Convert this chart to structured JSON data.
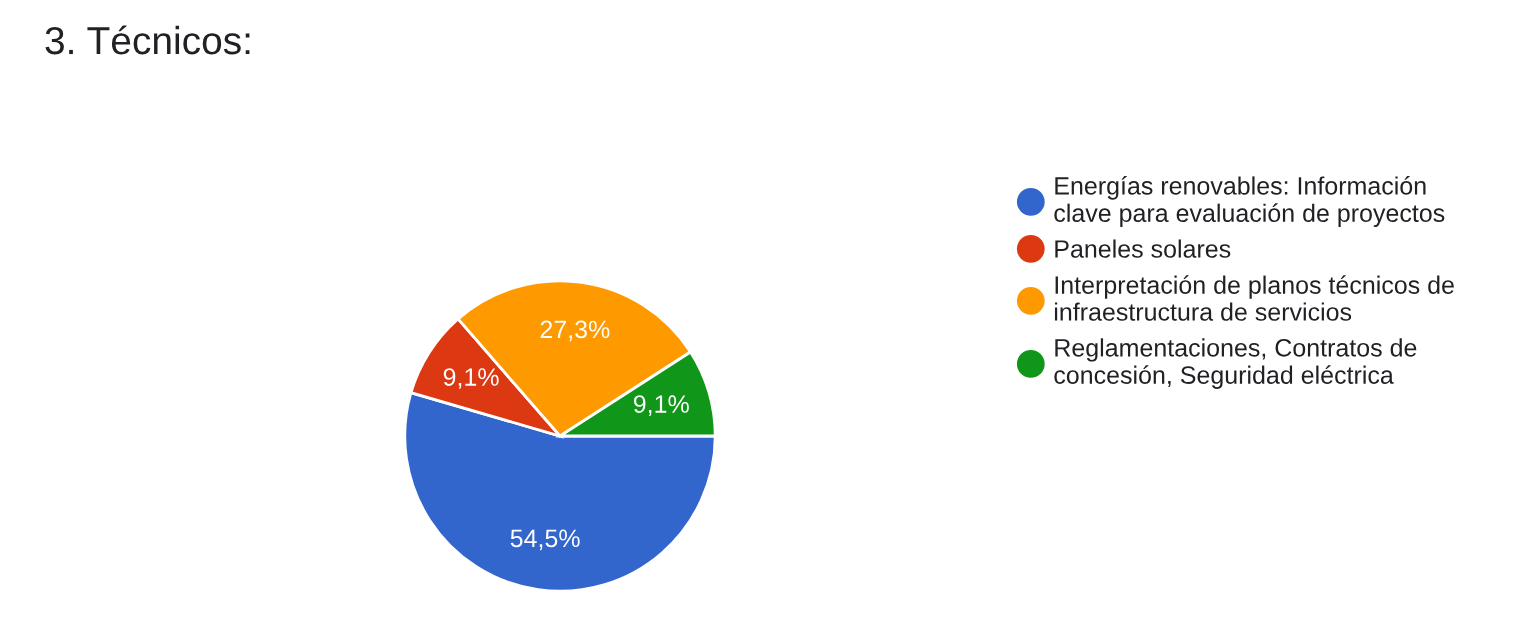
{
  "chart_data": {
    "type": "pie",
    "title": "3. Técnicos:",
    "categories": [
      "Energías renovables: Información\nclave para evaluación de proyectos",
      "Paneles solares",
      "Interpretación de planos técnicos de\ninfraestructura de servicios",
      "Reglamentaciones, Contratos de\nconcesión, Seguridad eléctrica"
    ],
    "values": [
      54.5,
      9.1,
      27.3,
      9.1
    ],
    "value_labels": [
      "54,5%",
      "9,1%",
      "27,3%",
      "9,1%"
    ],
    "colors": [
      "#3366cc",
      "#dc3912",
      "#ff9900",
      "#109618"
    ],
    "legend": "right"
  }
}
